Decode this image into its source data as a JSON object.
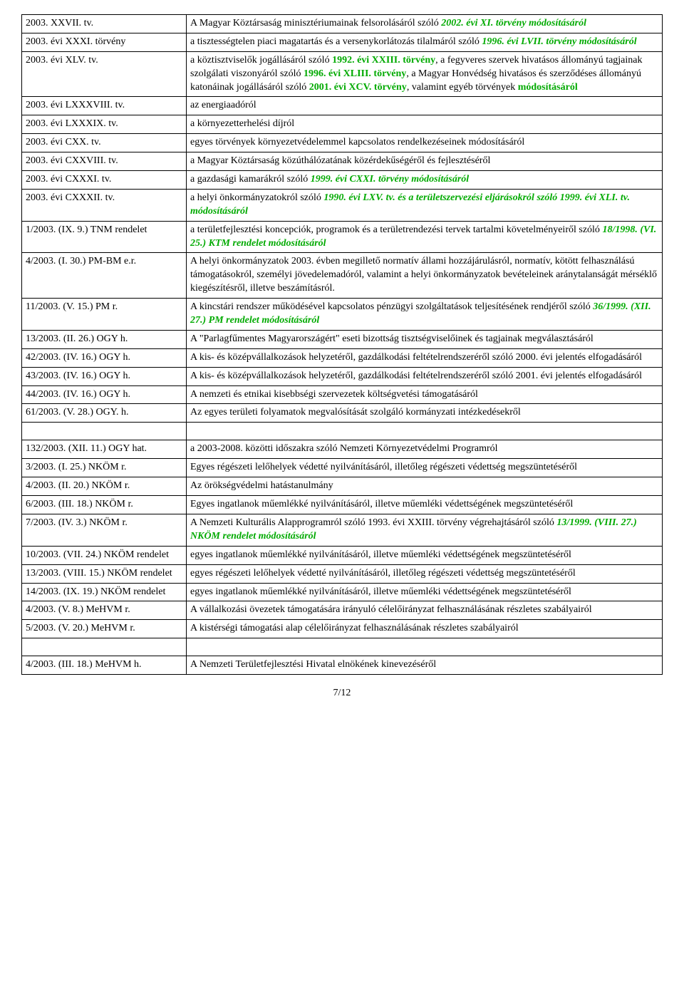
{
  "rows": [
    {
      "left": [
        {
          "t": "2003. XXVII. tv."
        }
      ],
      "right": [
        {
          "t": "A Magyar Köztársaság minisztériumainak felsorolásáról szóló "
        },
        {
          "t": "2002. évi XI. törvény módosításáról",
          "class": "b i green"
        }
      ]
    },
    {
      "left": [
        {
          "t": "2003. évi XXXI. törvény"
        }
      ],
      "right": [
        {
          "t": "a tisztességtelen piaci magatartás és a versenykorlátozás tilalmáról szóló "
        },
        {
          "t": "1996. évi LVII. törvény módosításáról",
          "class": "b i green"
        }
      ]
    },
    {
      "left": [
        {
          "t": "2003. évi XLV. tv."
        }
      ],
      "right": [
        {
          "t": "a köztisztviselők jogállásáról szóló "
        },
        {
          "t": "1992. évi XXIII. törvény",
          "class": "b green"
        },
        {
          "t": ", a fegyveres szervek hivatásos állományú tagjainak szolgálati viszonyáról szóló "
        },
        {
          "t": "1996. évi XLIII. törvény",
          "class": "b green"
        },
        {
          "t": ", a Magyar Honvédség hivatásos és szerződéses állományú katonáinak jogállásáról szóló "
        },
        {
          "t": "2001. évi XCV. törvény",
          "class": "b green"
        },
        {
          "t": ", valamint egyéb törvények "
        },
        {
          "t": "módosításáról",
          "class": "b green"
        }
      ]
    },
    {
      "left": [
        {
          "t": "2003. évi LXXXVIII. tv."
        }
      ],
      "right": [
        {
          "t": "az energiaadóról"
        }
      ]
    },
    {
      "left": [
        {
          "t": "2003. évi LXXXIX. tv."
        }
      ],
      "right": [
        {
          "t": "a környezetterhelési díjról"
        }
      ]
    },
    {
      "left": [
        {
          "t": "2003. évi CXX. tv."
        }
      ],
      "right": [
        {
          "t": "egyes törvények környezetvédelemmel kapcsolatos rendelkezéseinek módosításáról"
        }
      ]
    },
    {
      "left": [
        {
          "t": "2003. évi CXXVIII. tv."
        }
      ],
      "right": [
        {
          "t": "a Magyar Köztársaság közúthálózatának közérdekűségéről és fejlesztéséről"
        }
      ]
    },
    {
      "left": [
        {
          "t": "2003. évi CXXXI. tv."
        }
      ],
      "right": [
        {
          "t": "a gazdasági kamarákról szóló "
        },
        {
          "t": "1999. évi CXXI. törvény módosításáról",
          "class": "b i green"
        }
      ]
    },
    {
      "left": [
        {
          "t": "2003. évi CXXXII. tv."
        }
      ],
      "right": [
        {
          "t": "a helyi önkormányzatokról szóló "
        },
        {
          "t": "1990. évi LXV. tv. és a területszervezési eljárásokról szóló 1999. évi XLI. tv. módosításáról",
          "class": "b i green"
        }
      ]
    },
    {
      "left": [
        {
          "t": "1/2003. (IX. 9.) TNM rendelet"
        }
      ],
      "right": [
        {
          "t": "a területfejlesztési koncepciók, programok és a területrendezési tervek tartalmi követelményeiről szóló "
        },
        {
          "t": "18/1998. (VI. 25.) KTM rendelet módosításáról",
          "class": "b i green"
        }
      ]
    },
    {
      "left": [
        {
          "t": "4/2003. (I. 30.) PM-BM e.r."
        }
      ],
      "right": [
        {
          "t": "A helyi önkormányzatok 2003. évben megillető normatív állami hozzájárulásról, normatív, kötött felhasználású támogatásokról, személyi jövedelemadóról, valamint a helyi önkormányzatok bevételeinek aránytalanságát mérséklő kiegészítésről, illetve beszámításról."
        }
      ]
    },
    {
      "left": [
        {
          "t": "11/2003. (V. 15.) PM r."
        }
      ],
      "right": [
        {
          "t": "A kincstári rendszer működésével kapcsolatos pénzügyi szolgáltatások teljesítésének rendjéről szóló "
        },
        {
          "t": "36/1999. (XII. 27.) PM rendelet módosításáról",
          "class": "b i green"
        }
      ]
    },
    {
      "left": [
        {
          "t": "13/2003. (II. 26.) OGY h."
        }
      ],
      "right": [
        {
          "t": "A \"Parlagfűmentes Magyarországért\" eseti bizottság tisztségviselőinek és tagjainak megválasztásáról"
        }
      ]
    },
    {
      "left": [
        {
          "t": "42/2003. (IV. 16.) OGY h."
        }
      ],
      "right": [
        {
          "t": "A kis- és középvállalkozások helyzetéről, gazdálkodási feltételrendszeréről szóló 2000. évi jelentés elfogadásáról"
        }
      ]
    },
    {
      "left": [
        {
          "t": "43/2003. (IV. 16.) OGY h."
        }
      ],
      "right": [
        {
          "t": "A kis- és középvállalkozások helyzetéről, gazdálkodási feltételrendszeréről szóló 2001. évi jelentés elfogadásáról"
        }
      ]
    },
    {
      "left": [
        {
          "t": "44/2003. (IV. 16.) OGY h."
        }
      ],
      "right": [
        {
          "t": "A nemzeti és etnikai kisebbségi szervezetek költségvetési támogatásáról"
        }
      ]
    },
    {
      "left": [
        {
          "t": "61/2003. (V. 28.) OGY. h."
        }
      ],
      "right": [
        {
          "t": "Az egyes területi folyamatok megvalósítását szolgáló kormányzati intézkedésekről"
        }
      ]
    },
    {
      "spacer": true
    },
    {
      "left": [
        {
          "t": "132/2003. (XII. 11.) OGY hat."
        }
      ],
      "right": [
        {
          "t": "a 2003-2008. közötti időszakra szóló Nemzeti Környezetvédelmi Programról"
        }
      ]
    },
    {
      "left": [
        {
          "t": "3/2003. (I. 25.) NKÖM r."
        }
      ],
      "right": [
        {
          "t": "Egyes régészeti lelőhelyek védetté nyilvánításáról, illetőleg régészeti védettség megszüntetéséről"
        }
      ]
    },
    {
      "left": [
        {
          "t": "4/2003. (II. 20.) NKÖM r."
        }
      ],
      "right": [
        {
          "t": "Az örökségvédelmi hatástanulmány"
        }
      ]
    },
    {
      "left": [
        {
          "t": "6/2003. (III. 18.) NKÖM r."
        }
      ],
      "right": [
        {
          "t": "Egyes ingatlanok műemlékké nyilvánításáról, illetve műemléki védettségének megszüntetéséről"
        }
      ]
    },
    {
      "left": [
        {
          "t": "7/2003. (IV. 3.) NKÖM r."
        }
      ],
      "right": [
        {
          "t": "A Nemzeti Kulturális Alapprogramról szóló 1993. évi XXIII. törvény végrehajtásáról szóló "
        },
        {
          "t": "13/1999. (VIII. 27.) NKÖM rendelet módosításáról",
          "class": "b i green"
        }
      ]
    },
    {
      "left": [
        {
          "t": "10/2003. (VII. 24.) NKÖM rendelet"
        }
      ],
      "right": [
        {
          "t": "egyes ingatlanok műemlékké nyilvánításáról, illetve műemléki védettségének megszüntetéséről"
        }
      ]
    },
    {
      "left": [
        {
          "t": "13/2003. (VIII. 15.) NKÖM rendelet"
        }
      ],
      "right": [
        {
          "t": "egyes régészeti lelőhelyek védetté nyilvánításáról, illetőleg régészeti védettség megszüntetéséről"
        }
      ]
    },
    {
      "left": [
        {
          "t": "14/2003. (IX. 19.) NKÖM rendelet"
        }
      ],
      "right": [
        {
          "t": "egyes ingatlanok műemlékké nyilvánításáról, illetve műemléki védettségének megszüntetéséről"
        }
      ]
    },
    {
      "left": [
        {
          "t": "4/2003. (V. 8.) MeHVM r."
        }
      ],
      "right": [
        {
          "t": "A vállalkozási övezetek támogatására irányuló célelőirányzat felhasználásának részletes szabályairól"
        }
      ]
    },
    {
      "left": [
        {
          "t": "5/2003. (V. 20.) MeHVM r."
        }
      ],
      "right": [
        {
          "t": "A kistérségi támogatási alap célelőirányzat felhasználásának részletes szabályairól"
        }
      ]
    },
    {
      "spacer": true
    },
    {
      "left": [
        {
          "t": "4/2003. (III. 18.) MeHVM h."
        }
      ],
      "right": [
        {
          "t": "A Nemzeti Területfejlesztési Hivatal elnökének kinevezéséről"
        }
      ]
    }
  ],
  "pagenum": "7/12"
}
